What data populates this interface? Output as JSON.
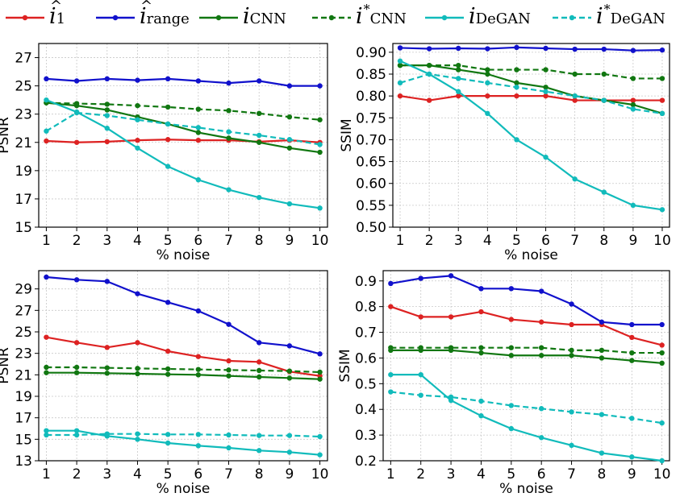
{
  "legend": [
    {
      "key": "i1",
      "base": "i",
      "hat": true,
      "sub": "1",
      "sup": "",
      "color": "#dd2222",
      "dashed": false
    },
    {
      "key": "irange",
      "base": "i",
      "hat": true,
      "sub": "range",
      "sup": "",
      "color": "#1111cc",
      "dashed": false
    },
    {
      "key": "icnn",
      "base": "i",
      "hat": false,
      "sub": "CNN",
      "sup": "",
      "color": "#117711",
      "dashed": false
    },
    {
      "key": "icnn_star",
      "base": "i",
      "hat": false,
      "sub": "CNN",
      "sup": "*",
      "color": "#117711",
      "dashed": true
    },
    {
      "key": "idegan",
      "base": "i",
      "hat": false,
      "sub": "DeGAN",
      "sup": "",
      "color": "#11bbbb",
      "dashed": false
    },
    {
      "key": "idegan_star",
      "base": "i",
      "hat": false,
      "sub": "DeGAN",
      "sup": "*",
      "color": "#11bbbb",
      "dashed": true
    }
  ],
  "chart_data": [
    {
      "type": "line",
      "position": "top-left",
      "title": "",
      "xlabel": "% noise",
      "ylabel": "PSNR",
      "x": [
        1,
        2,
        3,
        4,
        5,
        6,
        7,
        8,
        9,
        10
      ],
      "xticks": [
        1,
        2,
        3,
        4,
        5,
        6,
        7,
        8,
        9,
        10
      ],
      "ylim": [
        15,
        28
      ],
      "yticks": [
        15,
        17,
        19,
        21,
        23,
        25,
        27
      ],
      "grid": true,
      "series": [
        {
          "name": "i1",
          "values": [
            21.1,
            21.0,
            21.05,
            21.15,
            21.2,
            21.15,
            21.15,
            21.05,
            21.15,
            21.0
          ]
        },
        {
          "name": "irange",
          "values": [
            25.5,
            25.35,
            25.5,
            25.4,
            25.5,
            25.35,
            25.2,
            25.35,
            25.0,
            25.0
          ]
        },
        {
          "name": "icnn",
          "values": [
            23.8,
            23.6,
            23.3,
            22.8,
            22.3,
            21.7,
            21.3,
            21.0,
            20.6,
            20.3
          ]
        },
        {
          "name": "icnn_star",
          "values": [
            23.8,
            23.75,
            23.7,
            23.6,
            23.5,
            23.35,
            23.25,
            23.05,
            22.8,
            22.6
          ]
        },
        {
          "name": "idegan",
          "values": [
            24.0,
            23.15,
            22.0,
            20.6,
            19.3,
            18.35,
            17.65,
            17.1,
            16.65,
            16.35
          ]
        },
        {
          "name": "idegan_star",
          "values": [
            21.8,
            23.1,
            22.9,
            22.6,
            22.3,
            22.05,
            21.75,
            21.5,
            21.2,
            20.85
          ]
        }
      ]
    },
    {
      "type": "line",
      "position": "top-right",
      "title": "",
      "xlabel": "% noise",
      "ylabel": "SSIM",
      "x": [
        1,
        2,
        3,
        4,
        5,
        6,
        7,
        8,
        9,
        10
      ],
      "xticks": [
        1,
        2,
        3,
        4,
        5,
        6,
        7,
        8,
        9,
        10
      ],
      "ylim": [
        0.5,
        0.92
      ],
      "yticks": [
        0.5,
        0.55,
        0.6,
        0.65,
        0.7,
        0.75,
        0.8,
        0.85,
        0.9
      ],
      "ytick_labels": [
        "0.50",
        "0.55",
        "0.60",
        "0.65",
        "0.70",
        "0.75",
        "0.80",
        "0.85",
        "0.90"
      ],
      "grid": true,
      "series": [
        {
          "name": "i1",
          "values": [
            0.8,
            0.79,
            0.8,
            0.8,
            0.8,
            0.8,
            0.79,
            0.79,
            0.79,
            0.79
          ]
        },
        {
          "name": "irange",
          "values": [
            0.91,
            0.908,
            0.909,
            0.908,
            0.911,
            0.909,
            0.907,
            0.907,
            0.904,
            0.905
          ]
        },
        {
          "name": "icnn",
          "values": [
            0.87,
            0.87,
            0.86,
            0.85,
            0.83,
            0.82,
            0.8,
            0.79,
            0.78,
            0.76
          ]
        },
        {
          "name": "icnn_star",
          "values": [
            0.87,
            0.87,
            0.87,
            0.86,
            0.86,
            0.86,
            0.85,
            0.85,
            0.84,
            0.84
          ]
        },
        {
          "name": "idegan",
          "values": [
            0.88,
            0.85,
            0.81,
            0.76,
            0.7,
            0.66,
            0.61,
            0.58,
            0.55,
            0.54
          ]
        },
        {
          "name": "idegan_star",
          "values": [
            0.83,
            0.85,
            0.84,
            0.83,
            0.82,
            0.81,
            0.8,
            0.79,
            0.77,
            0.76
          ]
        }
      ]
    },
    {
      "type": "line",
      "position": "bottom-left",
      "title": "",
      "xlabel": "% noise",
      "ylabel": "PSNR",
      "x": [
        1,
        2,
        3,
        4,
        5,
        6,
        7,
        8,
        9,
        10
      ],
      "xticks": [
        1,
        2,
        3,
        4,
        5,
        6,
        7,
        8,
        9,
        10
      ],
      "ylim": [
        13,
        30.7
      ],
      "yticks": [
        13,
        15,
        17,
        19,
        21,
        23,
        25,
        27,
        29
      ],
      "grid": true,
      "series": [
        {
          "name": "i1",
          "values": [
            24.5,
            24.0,
            23.55,
            24.0,
            23.2,
            22.7,
            22.3,
            22.2,
            21.3,
            20.9
          ]
        },
        {
          "name": "irange",
          "values": [
            30.1,
            29.85,
            29.7,
            28.55,
            27.75,
            26.95,
            25.7,
            24.0,
            23.7,
            22.95
          ]
        },
        {
          "name": "icnn",
          "values": [
            21.2,
            21.2,
            21.15,
            21.1,
            21.05,
            21.0,
            20.9,
            20.8,
            20.7,
            20.6
          ]
        },
        {
          "name": "icnn_star",
          "values": [
            21.7,
            21.7,
            21.65,
            21.6,
            21.55,
            21.5,
            21.45,
            21.4,
            21.35,
            21.25
          ]
        },
        {
          "name": "idegan",
          "values": [
            15.8,
            15.8,
            15.3,
            15.0,
            14.65,
            14.4,
            14.2,
            13.95,
            13.8,
            13.55
          ]
        },
        {
          "name": "idegan_star",
          "values": [
            15.4,
            15.4,
            15.5,
            15.5,
            15.45,
            15.45,
            15.4,
            15.35,
            15.35,
            15.25
          ]
        }
      ]
    },
    {
      "type": "line",
      "position": "bottom-right",
      "title": "",
      "xlabel": "% noise",
      "ylabel": "SSIM",
      "x": [
        1,
        2,
        3,
        4,
        5,
        6,
        7,
        8,
        9,
        10
      ],
      "xticks": [
        1,
        2,
        3,
        4,
        5,
        6,
        7,
        8,
        9,
        10
      ],
      "ylim": [
        0.2,
        0.94
      ],
      "yticks": [
        0.2,
        0.3,
        0.4,
        0.5,
        0.6,
        0.7,
        0.8,
        0.9
      ],
      "ytick_labels": [
        "0.2",
        "0.3",
        "0.4",
        "0.5",
        "0.6",
        "0.7",
        "0.8",
        "0.9"
      ],
      "grid": true,
      "series": [
        {
          "name": "i1",
          "values": [
            0.8,
            0.76,
            0.76,
            0.78,
            0.75,
            0.74,
            0.73,
            0.73,
            0.68,
            0.65
          ]
        },
        {
          "name": "irange",
          "values": [
            0.89,
            0.91,
            0.92,
            0.87,
            0.87,
            0.86,
            0.81,
            0.74,
            0.73,
            0.73
          ]
        },
        {
          "name": "icnn",
          "values": [
            0.63,
            0.63,
            0.63,
            0.62,
            0.61,
            0.61,
            0.61,
            0.6,
            0.59,
            0.58
          ]
        },
        {
          "name": "icnn_star",
          "values": [
            0.64,
            0.64,
            0.64,
            0.64,
            0.64,
            0.64,
            0.63,
            0.63,
            0.62,
            0.62
          ]
        },
        {
          "name": "idegan",
          "values": [
            0.535,
            0.535,
            0.435,
            0.375,
            0.325,
            0.29,
            0.26,
            0.23,
            0.215,
            0.2
          ]
        },
        {
          "name": "idegan_star",
          "values": [
            0.468,
            0.455,
            0.448,
            0.432,
            0.415,
            0.403,
            0.39,
            0.38,
            0.365,
            0.347
          ]
        }
      ]
    }
  ]
}
